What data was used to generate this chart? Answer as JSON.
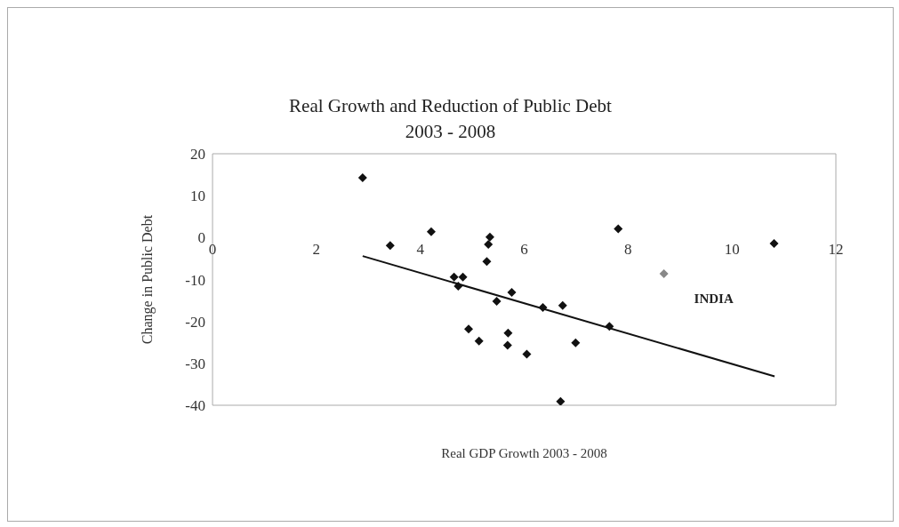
{
  "chart_data": {
    "type": "scatter",
    "title": "Real Growth and Reduction of Public Debt",
    "subtitle": "2003 - 2008",
    "xlabel": "Real GDP Growth 2003 - 2008",
    "ylabel": "Change in Public Debt",
    "xlim": [
      0,
      12
    ],
    "xticks": [
      0,
      2,
      4,
      6,
      8,
      10,
      12
    ],
    "ylim": [
      -40,
      20
    ],
    "yticks": [
      -40,
      -30,
      -20,
      -10,
      0,
      10,
      20
    ],
    "marker": "diamond",
    "series": [
      {
        "color": "#111111",
        "x": [
          2.89,
          3.42,
          4.21,
          5.34,
          5.31,
          5.28,
          4.65,
          4.82,
          4.73,
          5.76,
          5.47,
          4.93,
          5.13,
          5.69,
          5.68,
          6.05,
          7.81,
          10.81,
          6.36,
          6.74,
          7.64,
          6.99,
          6.7
        ],
        "values": [
          14.3,
          -1.9,
          1.4,
          0.1,
          -1.6,
          -5.7,
          -9.4,
          -9.4,
          -11.6,
          -13.1,
          -15.2,
          -21.8,
          -24.7,
          -22.8,
          -25.7,
          -27.8,
          2.1,
          -1.4,
          -16.7,
          -16.2,
          -21.2,
          -25.1,
          -39.1
        ]
      },
      {
        "color": "#888888",
        "x": [
          8.69
        ],
        "values": [
          -8.6
        ]
      },
      {
        "type": "line",
        "color": "#111111",
        "x": [
          2.89,
          10.82
        ],
        "values": [
          -4.4,
          -33.1
        ],
        "marker": "none",
        "line_style": "solid"
      }
    ],
    "annotations": [
      {
        "text": "INDIA",
        "x": 8.69,
        "y": -8.6
      }
    ]
  }
}
